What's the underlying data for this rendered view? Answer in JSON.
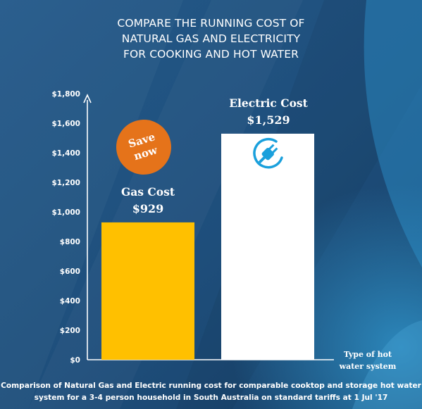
{
  "title_lines": [
    "COMPARE THE RUNNING COST OF",
    "NATURAL GAS AND ELECTRICITY",
    "FOR COOKING AND HOT WATER"
  ],
  "badge": {
    "line1": "Save",
    "line2": "now"
  },
  "colors": {
    "background": "#1f4f7c",
    "gas_bar": "#ffc000",
    "electric_bar": "#ffffff",
    "badge": "#e5731a",
    "plug_icon": "#1aa0dc"
  },
  "icon": "electric-plug-icon",
  "caption_lines": [
    "Comparison of Natural Gas and Electric running cost for comparable cooktop and storage hot water",
    "system  for a 3-4 person household in South Australia on standard tariffs  at 1 Jul '17"
  ],
  "chart_data": {
    "type": "bar",
    "categories": [
      "Gas Cost",
      "Electric Cost"
    ],
    "values": [
      929,
      1529
    ],
    "value_labels": [
      "$929",
      "$1,529"
    ],
    "xlabel": "Type of hot water system",
    "ylabel": "",
    "ylim": [
      0,
      1800
    ],
    "yticks": [
      0,
      200,
      400,
      600,
      800,
      1000,
      1200,
      1400,
      1600,
      1800
    ],
    "ytick_labels": [
      "$0",
      "$200",
      "$400",
      "$600",
      "$800",
      "$1,000",
      "$1,200",
      "$1,400",
      "$1,600",
      "$1,800"
    ],
    "grid": false,
    "legend": "none"
  }
}
